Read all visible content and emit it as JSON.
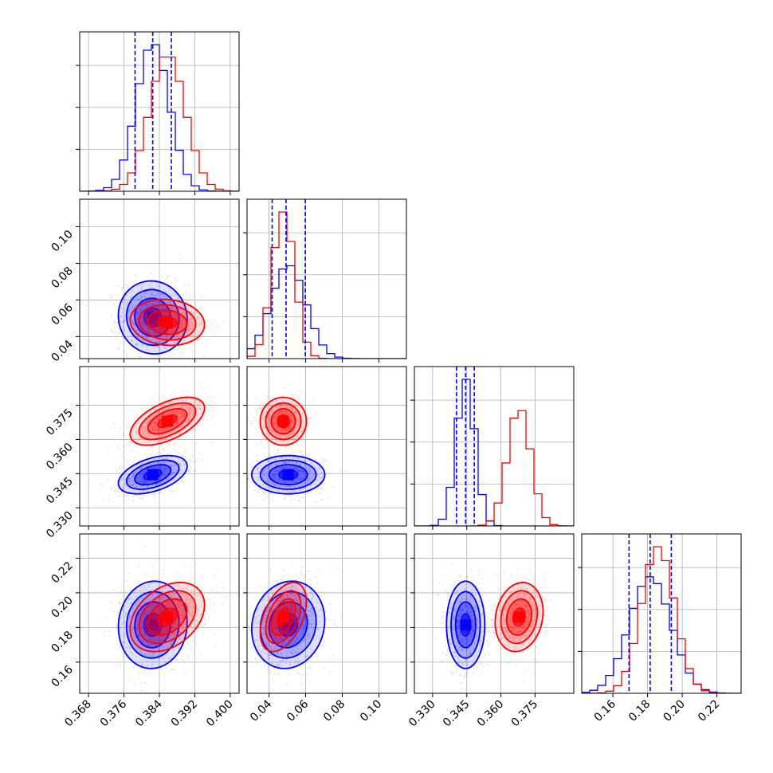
{
  "chart_data": {
    "type": "corner",
    "title": "",
    "parameters": [
      {
        "range": [
          0.366,
          0.402
        ],
        "ticks": [
          "0.368",
          "0.376",
          "0.384",
          "0.392",
          "0.400"
        ]
      },
      {
        "range": [
          0.028,
          0.115
        ],
        "ticks": [
          "0.04",
          "0.06",
          "0.08",
          "0.10"
        ]
      },
      {
        "range": [
          0.322,
          0.392
        ],
        "ticks": [
          "0.330",
          "0.345",
          "0.360",
          "0.375"
        ]
      },
      {
        "range": [
          0.142,
          0.234
        ],
        "ticks": [
          "0.16",
          "0.18",
          "0.20",
          "0.22"
        ]
      }
    ],
    "series": [
      {
        "color": "#0000ff",
        "mean": [
          0.3825,
          0.0505,
          0.3445,
          0.1815
        ],
        "sigma": [
          0.0037,
          0.0095,
          0.004,
          0.012
        ],
        "correlations": {
          "0-1": -0.05,
          "0-2": 0.45,
          "0-3": 0.05,
          "1-2": 0.0,
          "1-3": 0.1,
          "2-3": 0.0
        },
        "quantiles": [
          [
            0.3785,
            0.3825,
            0.3867
          ],
          [
            0.0417,
            0.0493,
            0.0598
          ],
          [
            0.3405,
            0.3445,
            0.3483
          ],
          [
            0.1693,
            0.1815,
            0.1937
          ]
        ]
      },
      {
        "color": "#ff0000",
        "mean": [
          0.3858,
          0.0478,
          0.368,
          0.186
        ],
        "sigma": [
          0.004,
          0.006,
          0.005,
          0.0095
        ],
        "correlations": {
          "0-1": -0.1,
          "0-2": 0.55,
          "0-3": 0.35,
          "1-2": 0.0,
          "1-3": 0.45,
          "2-3": 0.15
        },
        "quantiles": []
      }
    ],
    "grid": true
  }
}
